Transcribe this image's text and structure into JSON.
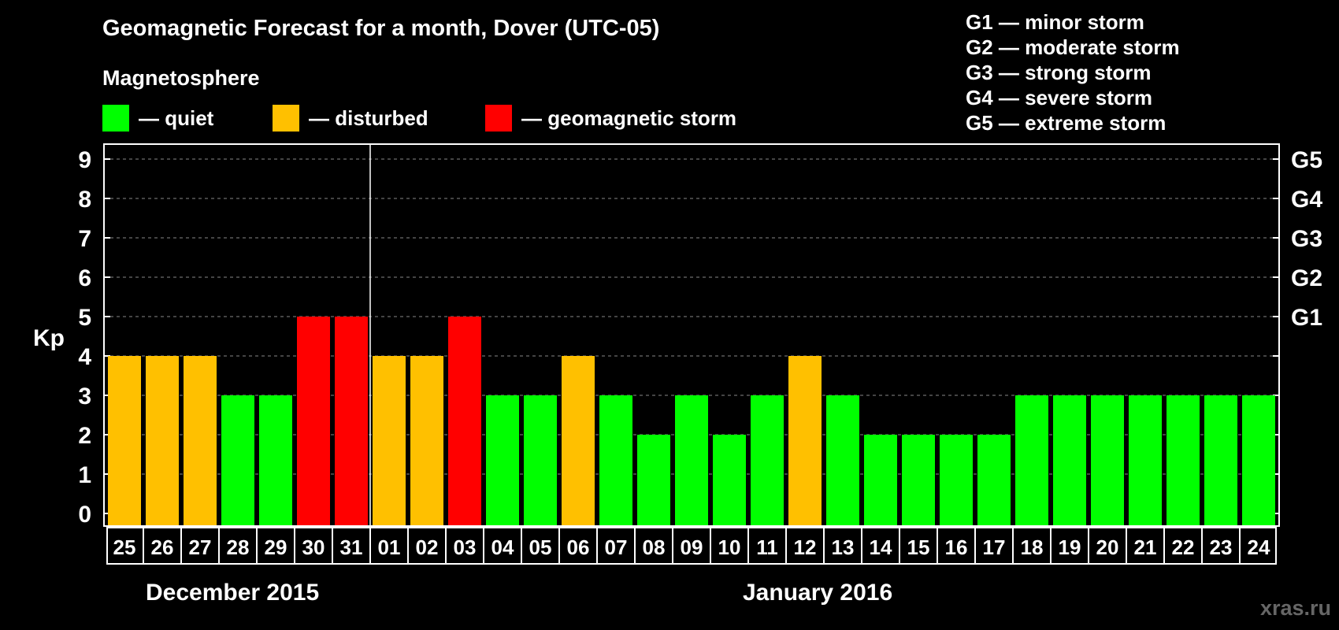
{
  "title": "Geomagnetic Forecast for a month, Dover (UTC-05)",
  "legend": {
    "title": "Magnetosphere",
    "items": [
      {
        "label": "— quiet",
        "color": "#00ff00"
      },
      {
        "label": "— disturbed",
        "color": "#ffc000"
      },
      {
        "label": "— geomagnetic storm",
        "color": "#ff0000"
      }
    ]
  },
  "g_scale": [
    "G1 — minor storm",
    "G2 — moderate storm",
    "G3 — strong storm",
    "G4 — severe storm",
    "G5 — extreme storm"
  ],
  "months": [
    {
      "label": "December 2015"
    },
    {
      "label": "January 2016"
    }
  ],
  "watermark": "xras.ru",
  "chart_data": {
    "type": "bar",
    "ylabel": "Kp",
    "xlabel": "",
    "ylim": [
      0,
      9
    ],
    "y_ticks": [
      "0",
      "1",
      "2",
      "3",
      "4",
      "5",
      "6",
      "7",
      "8",
      "9"
    ],
    "right_ticks": {
      "5": "G1",
      "6": "G2",
      "7": "G3",
      "8": "G4",
      "9": "G5"
    },
    "grid": "horizontal-dashed",
    "month_break_after": "31",
    "categories": [
      "25",
      "26",
      "27",
      "28",
      "29",
      "30",
      "31",
      "01",
      "02",
      "03",
      "04",
      "05",
      "06",
      "07",
      "08",
      "09",
      "10",
      "11",
      "12",
      "13",
      "14",
      "15",
      "16",
      "17",
      "18",
      "19",
      "20",
      "21",
      "22",
      "23",
      "24"
    ],
    "values": [
      4,
      4,
      4,
      3,
      3,
      5,
      5,
      4,
      4,
      5,
      3,
      3,
      4,
      3,
      2,
      3,
      2,
      3,
      4,
      3,
      2,
      2,
      2,
      2,
      3,
      3,
      3,
      3,
      3,
      3,
      3
    ],
    "colors": {
      "quiet": "#00ff00",
      "disturbed": "#ffc000",
      "storm": "#ff0000"
    }
  }
}
